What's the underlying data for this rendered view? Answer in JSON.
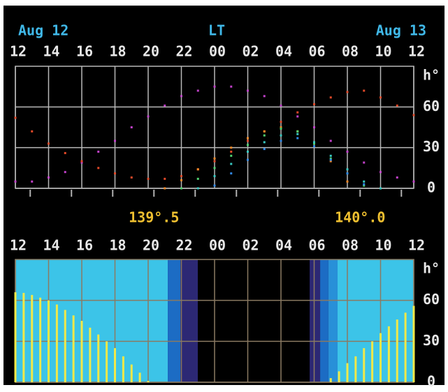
{
  "header": {
    "left": "Aug 12",
    "center": "LT",
    "right": "Aug 13"
  },
  "chart_data": [
    {
      "type": "scatter",
      "xlim": [
        12,
        36
      ],
      "xticks": [
        12,
        14,
        16,
        18,
        20,
        22,
        {
          "value": 24,
          "label": "00"
        },
        {
          "value": 26,
          "label": "02"
        },
        {
          "value": 28,
          "label": "04"
        },
        {
          "value": 30,
          "label": "06"
        },
        {
          "value": 32,
          "label": "08"
        },
        {
          "value": 34,
          "label": "10"
        },
        {
          "value": 36,
          "label": "12"
        }
      ],
      "ylim": [
        0,
        90
      ],
      "yticks": [
        0,
        30,
        60
      ],
      "y_label": "h°",
      "grid": true,
      "x2lim": [
        139.164,
        140.13
      ],
      "x2ticks": [
        {
          "value": 139.5,
          "label": "139°.5"
        },
        {
          "value": 140.0,
          "label": "140°.0"
        }
      ],
      "x2_minor_ticks": [
        139.2,
        139.3,
        139.4,
        139.5,
        139.6,
        139.7,
        139.8,
        139.9,
        140.0,
        140.1
      ],
      "x": [
        12,
        13,
        14,
        15,
        16,
        17,
        18,
        19,
        20,
        21,
        22,
        23,
        24,
        25,
        26,
        27,
        28,
        29,
        30,
        31,
        32,
        33,
        34,
        35,
        36
      ],
      "series": [
        {
          "color": "#c040c8",
          "values": [
            5,
            5,
            8,
            12,
            19,
            27,
            35,
            45,
            53,
            61,
            68,
            72,
            75,
            75,
            72,
            68,
            61,
            53,
            45,
            35,
            27,
            19,
            12,
            8,
            5
          ]
        },
        {
          "color": "#e04828",
          "values": [
            52,
            42,
            33,
            26,
            20,
            15,
            11,
            8,
            7,
            7,
            9,
            14,
            20,
            27,
            35,
            42,
            49,
            56,
            62,
            67,
            71,
            72,
            67,
            61,
            54
          ]
        },
        {
          "color": "#f08828",
          "values": [
            null,
            null,
            null,
            null,
            null,
            null,
            null,
            null,
            null,
            0,
            6,
            14,
            22,
            30,
            37,
            42,
            45,
            42,
            33,
            20,
            5,
            null,
            null,
            null,
            null
          ]
        },
        {
          "color": "#50d070",
          "values": [
            null,
            null,
            null,
            null,
            null,
            null,
            null,
            null,
            null,
            null,
            0,
            7,
            15,
            24,
            32,
            39,
            44,
            42,
            33,
            22,
            11,
            2,
            null,
            null,
            null
          ]
        },
        {
          "color": "#38c8c0",
          "values": [
            null,
            null,
            null,
            null,
            null,
            null,
            null,
            null,
            null,
            null,
            null,
            0,
            9,
            18,
            27,
            34,
            39,
            40,
            34,
            24,
            14,
            5,
            0,
            null,
            null
          ]
        },
        {
          "color": "#3088e8",
          "values": [
            null,
            null,
            null,
            null,
            null,
            null,
            null,
            null,
            null,
            null,
            null,
            null,
            2,
            11,
            21,
            29,
            35,
            37,
            31,
            21,
            11,
            3,
            null,
            null,
            null
          ]
        }
      ]
    },
    {
      "type": "bar",
      "xlim": [
        12,
        36
      ],
      "xticks": [
        12,
        14,
        16,
        18,
        20,
        22,
        {
          "value": 24,
          "label": "00"
        },
        {
          "value": 26,
          "label": "02"
        },
        {
          "value": 28,
          "label": "04"
        },
        {
          "value": 30,
          "label": "06"
        },
        {
          "value": 32,
          "label": "08"
        },
        {
          "value": 34,
          "label": "10"
        },
        {
          "value": 36,
          "label": "12"
        }
      ],
      "ylim": [
        0,
        90
      ],
      "yticks": [
        0,
        30,
        60
      ],
      "y_label": "h°",
      "grid": true,
      "bands": [
        {
          "start": 12,
          "end": 21.18,
          "color": "#3cc4e8"
        },
        {
          "start": 21.18,
          "end": 21.94,
          "color": "#1c6cc4"
        },
        {
          "start": 21.94,
          "end": 22.99,
          "color": "#2c2874"
        },
        {
          "start": 29.73,
          "end": 30.36,
          "color": "#2c2874"
        },
        {
          "start": 30.36,
          "end": 30.86,
          "color": "#1c6cc4"
        },
        {
          "start": 30.86,
          "end": 31.41,
          "color": "#2890d8"
        },
        {
          "start": 31.41,
          "end": 36,
          "color": "#3cc4e8"
        }
      ],
      "series": [
        {
          "color": "#f0e848",
          "x": [
            12,
            12.5,
            13,
            13.5,
            14,
            14.5,
            15,
            15.5,
            16,
            16.5,
            17,
            17.5,
            18,
            18.5,
            19,
            19.5,
            20,
            20.5,
            21,
            21.5,
            22,
            22.5,
            23,
            23.5,
            24,
            24.5,
            25,
            25.5,
            26,
            26.5,
            27,
            27.5,
            28,
            28.5,
            29,
            29.5,
            30,
            30.5,
            31,
            31.5,
            32,
            32.5,
            33,
            33.5,
            34,
            34.5,
            35,
            35.5,
            36
          ],
          "values": [
            66,
            65.5,
            64,
            62,
            60,
            57,
            53,
            49,
            45,
            40,
            35,
            30,
            25,
            19,
            13,
            7,
            1,
            0,
            0,
            0,
            0,
            0,
            0,
            0,
            0,
            0,
            0,
            0,
            0,
            0,
            0,
            0,
            0,
            0,
            0,
            0,
            0,
            0,
            3,
            8,
            14,
            19,
            25,
            30,
            36,
            41,
            46,
            51,
            56
          ]
        }
      ]
    }
  ]
}
